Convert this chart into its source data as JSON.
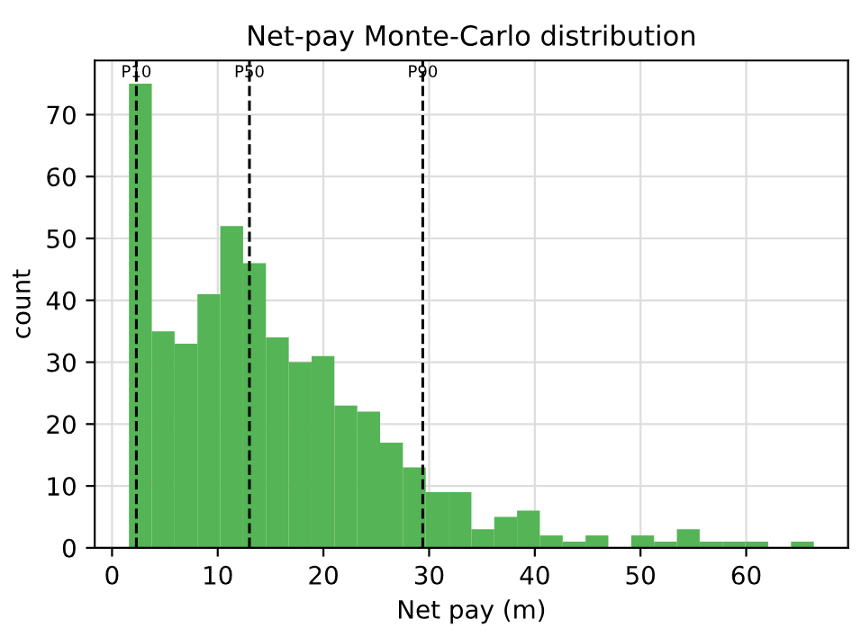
{
  "chart_data": {
    "type": "histogram",
    "title": "Net-pay Monte-Carlo distribution",
    "xlabel": "Net pay (m)",
    "ylabel": "count",
    "bins": [
      1.6,
      3.76,
      5.92,
      8.08,
      10.24,
      12.4,
      14.56,
      16.72,
      18.88,
      21.04,
      23.2,
      25.36,
      27.52,
      29.68,
      31.84,
      34.0,
      36.16,
      38.32,
      40.48,
      42.64,
      44.8,
      46.96,
      49.12,
      51.28,
      53.44,
      55.6,
      57.76,
      59.92,
      62.08,
      64.24,
      66.4
    ],
    "values": [
      75,
      35,
      33,
      41,
      52,
      46,
      34,
      30,
      31,
      23,
      22,
      17,
      13,
      9,
      9,
      3,
      5,
      6,
      2,
      1,
      2,
      0,
      2,
      1,
      3,
      1,
      1,
      1,
      0,
      1
    ],
    "color": "#55b455",
    "xlim": [
      -1.64,
      69.64
    ],
    "ylim": [
      0,
      78.75
    ],
    "xticks": [
      0,
      10,
      20,
      30,
      40,
      50,
      60
    ],
    "yticks": [
      0,
      10,
      20,
      30,
      40,
      50,
      60,
      70
    ],
    "grid": true,
    "ref_lines": [
      {
        "axis": "x",
        "value": 2.3,
        "label": "P10",
        "color": "#000000",
        "line_style": "dashed"
      },
      {
        "axis": "x",
        "value": 13.0,
        "label": "P50",
        "color": "#000000",
        "line_style": "dashed"
      },
      {
        "axis": "x",
        "value": 29.4,
        "label": "P90",
        "color": "#000000",
        "line_style": "dashed"
      }
    ]
  }
}
